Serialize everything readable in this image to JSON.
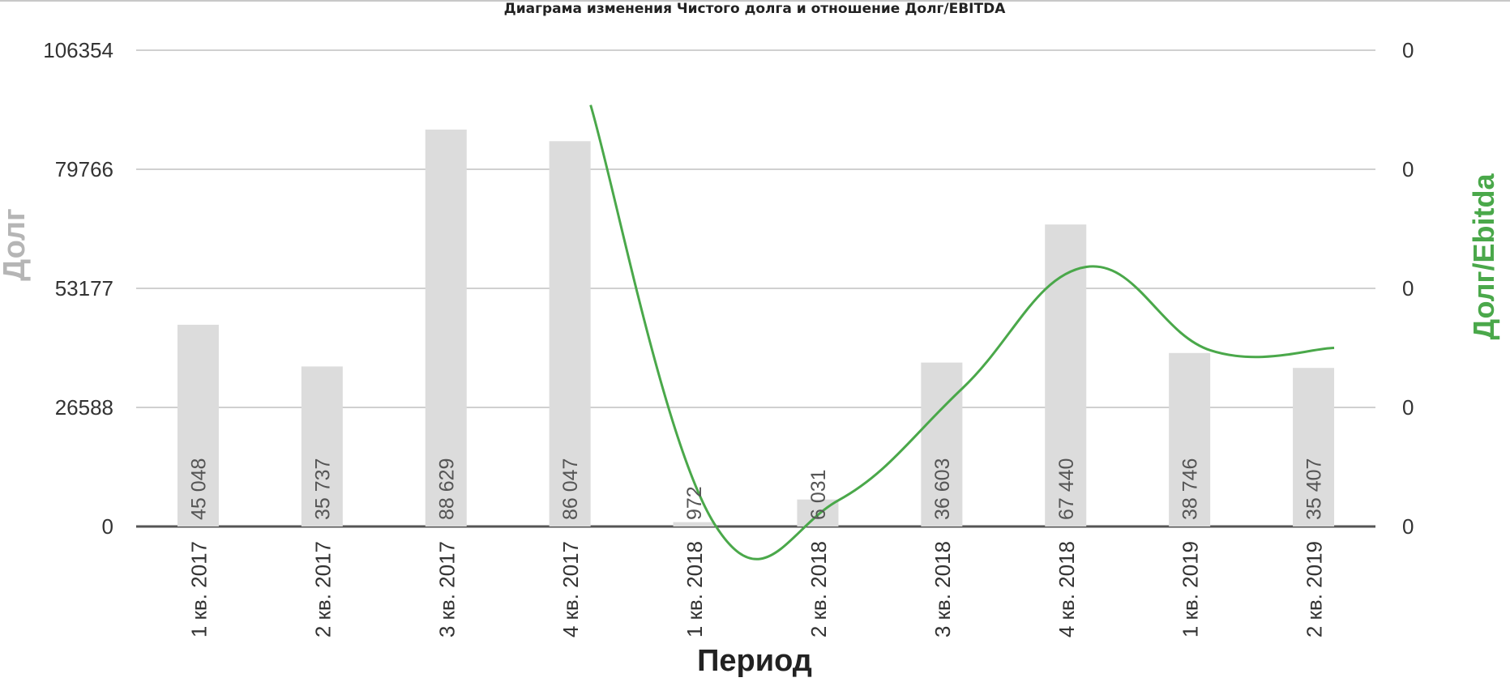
{
  "chart_data": {
    "type": "bar",
    "title": "Диаграма изменения Чистого долга и отношение Долг/EBITDA",
    "xlabel": "Период",
    "ylabel": "Долг",
    "y2label": "Долг/Ebitda",
    "categories": [
      "1 кв. 2017",
      "2 кв. 2017",
      "3 кв. 2017",
      "4 кв. 2017",
      "1 кв. 2018",
      "2 кв. 2018",
      "3 кв. 2018",
      "4 кв. 2018",
      "1 кв. 2019",
      "2 кв. 2019"
    ],
    "series": [
      {
        "name": "Долг",
        "type": "bar",
        "axis": "left",
        "values": [
          45048,
          35737,
          88629,
          86047,
          972,
          6031,
          36603,
          67440,
          38746,
          35407
        ],
        "data_labels": [
          "45 048",
          "35 737",
          "88 629",
          "86 047",
          "972",
          "6 031",
          "36 603",
          "67 440",
          "38 746",
          "35 407"
        ]
      },
      {
        "name": "Долг/Ebitda",
        "type": "line",
        "axis": "right",
        "points": [
          [
            3,
            88.5
          ],
          [
            4,
            0.5
          ],
          [
            5,
            5.5
          ],
          [
            6,
            29
          ],
          [
            7,
            54.5
          ],
          [
            8,
            37
          ],
          [
            9,
            37.5
          ]
        ]
      }
    ],
    "ylim": [
      0,
      106354
    ],
    "yticks": [
      "0",
      "26588",
      "53177",
      "79766",
      "106354"
    ],
    "y2ticks": [
      "0",
      "0",
      "0",
      "0",
      "0"
    ],
    "grid": true,
    "legend": "none",
    "colors": {
      "bar": "#dcdcdc",
      "line": "#4aa84a",
      "y1_title": "#b5b5b5",
      "y2_title": "#4aa84a",
      "grid": "#d0d0d0",
      "baseline": "#555555"
    }
  }
}
